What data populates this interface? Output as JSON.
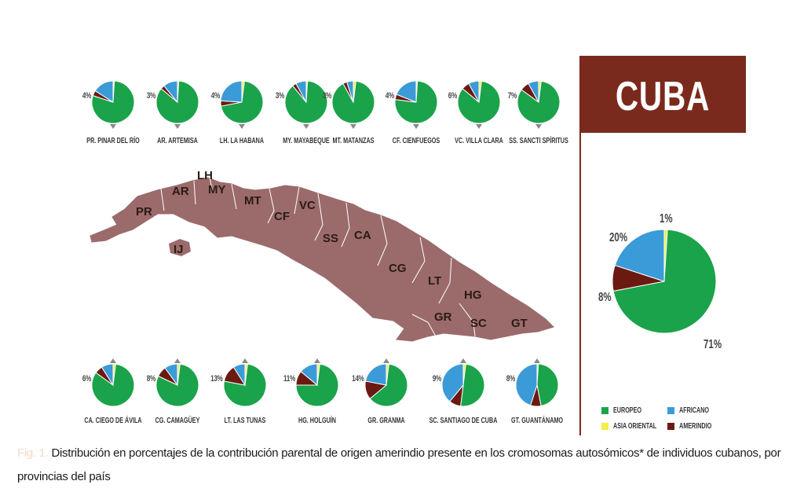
{
  "title": "CUBA",
  "colors": {
    "europeo": "#1aa34a",
    "africano": "#3b9bd8",
    "asia_oriental": "#f2ee4a",
    "amerindio": "#6b1a12",
    "map": "#9b6b6b",
    "title_bg": "#7a2a1c"
  },
  "legend": [
    {
      "key": "europeo",
      "label": "EUROPEO"
    },
    {
      "key": "africano",
      "label": "AFRICANO"
    },
    {
      "key": "asia_oriental",
      "label": "ASIA ORIENTAL"
    },
    {
      "key": "amerindio",
      "label": "AMERINDIO"
    }
  ],
  "caption": {
    "figure_label": "Fig. 1.",
    "text": "Distribución en porcentajes de la contribución parental de origen amerindio presente en los cromosomas autosómicos* de individuos cubanos, por provincias del país"
  },
  "map_labels": [
    "LH",
    "AR",
    "MY",
    "PR",
    "MT",
    "VC",
    "CF",
    "SS",
    "CA",
    "IJ",
    "CG",
    "LT",
    "HG",
    "GR",
    "SC",
    "GT"
  ],
  "chart_data": {
    "type": "pie",
    "series_order": [
      "Europeo",
      "Africano",
      "Asia Oriental",
      "Amerindio"
    ],
    "national": {
      "name": "CUBA",
      "values": [
        71,
        20,
        1,
        8
      ],
      "labels": [
        "71%",
        "20%",
        "1%",
        "8%"
      ]
    },
    "provinces": [
      {
        "label": "PR. PINAR DEL RÍO",
        "amerindio_label": "4%",
        "values": [
          79,
          16,
          1,
          4
        ]
      },
      {
        "label": "AR. ARTEMISA",
        "amerindio_label": "3%",
        "values": [
          85,
          11,
          1,
          3
        ]
      },
      {
        "label": "LH. LA HABANA",
        "amerindio_label": "4%",
        "values": [
          70,
          24,
          2,
          4
        ]
      },
      {
        "label": "MY. MAYABEQUE",
        "amerindio_label": "3%",
        "values": [
          88,
          8,
          1,
          3
        ]
      },
      {
        "label": "MT. MATANZAS",
        "amerindio_label": "3%",
        "values": [
          90,
          5,
          2,
          3
        ]
      },
      {
        "label": "CF. CIENFUEGOS",
        "amerindio_label": "4%",
        "values": [
          76,
          19,
          1,
          4
        ]
      },
      {
        "label": "VC. VILLA CLARA",
        "amerindio_label": "6%",
        "values": [
          84,
          8,
          2,
          6
        ]
      },
      {
        "label": "SS. SANCTI SPÍRITUS",
        "amerindio_label": "7%",
        "values": [
          83,
          8,
          2,
          7
        ]
      },
      {
        "label": "CA. CIEGO DE ÁVILA",
        "amerindio_label": "6%",
        "values": [
          83,
          9,
          2,
          6
        ]
      },
      {
        "label": "CG. CAMAGÜEY",
        "amerindio_label": "8%",
        "values": [
          80,
          10,
          2,
          8
        ]
      },
      {
        "label": "LT. LAS TUNAS",
        "amerindio_label": "13%",
        "values": [
          76,
          9,
          2,
          13
        ]
      },
      {
        "label": "HG. HOLGUÍN",
        "amerindio_label": "11%",
        "values": [
          73,
          14,
          2,
          11
        ]
      },
      {
        "label": "GR. GRANMA",
        "amerindio_label": "14%",
        "values": [
          62,
          22,
          2,
          14
        ]
      },
      {
        "label": "SC. SANTIAGO DE CUBA",
        "amerindio_label": "9%",
        "values": [
          50,
          39,
          2,
          9
        ]
      },
      {
        "label": "GT. GUANTÁNAMO",
        "amerindio_label": "8%",
        "values": [
          46,
          45,
          1,
          8
        ]
      }
    ]
  }
}
